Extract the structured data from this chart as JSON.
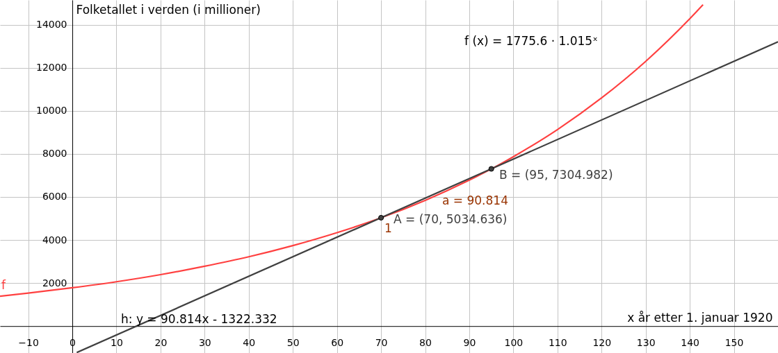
{
  "chart_data": {
    "type": "line",
    "ylabel": "Folketallet i verden (i millioner)",
    "xlabel": "x år etter 1. januar 1920",
    "xlim": [
      -16.4,
      160
    ],
    "ylim": [
      -1250,
      15150
    ],
    "xticks": [
      -10,
      0,
      10,
      20,
      30,
      40,
      50,
      60,
      70,
      80,
      90,
      100,
      110,
      120,
      130,
      140,
      150
    ],
    "yticks": [
      2000,
      4000,
      6000,
      8000,
      10000,
      12000,
      14000
    ],
    "grid": true,
    "series": [
      {
        "name": "f",
        "color": "#ff4040",
        "x": [
          -16.4,
          -10,
          0,
          10,
          20,
          30,
          40,
          50,
          60,
          70,
          80,
          90,
          95,
          100,
          110,
          120,
          130,
          140,
          143
        ],
        "values": [
          1390,
          1530,
          1780,
          2060,
          2390,
          2780,
          3220,
          3740,
          4340,
          5030,
          5840,
          6780,
          7300,
          7870,
          9130,
          10600,
          12300,
          14280,
          14930
        ]
      },
      {
        "type": "line",
        "color": "#404040",
        "x": [
          1,
          160
        ],
        "values": [
          -1230,
          13210
        ]
      },
      {
        "type": "scatter",
        "color": "#404040",
        "marker": "circle",
        "x": [
          70,
          95
        ],
        "values": [
          5035,
          7305
        ]
      }
    ],
    "annotations": [
      "f (x)  =  1775.6 · 1.015ˣ",
      "B = (95, 7304.982)",
      "a = 90.814",
      "A = (70, 5034.636)",
      "1",
      "h: y = 90.814x - 1322.332"
    ]
  }
}
